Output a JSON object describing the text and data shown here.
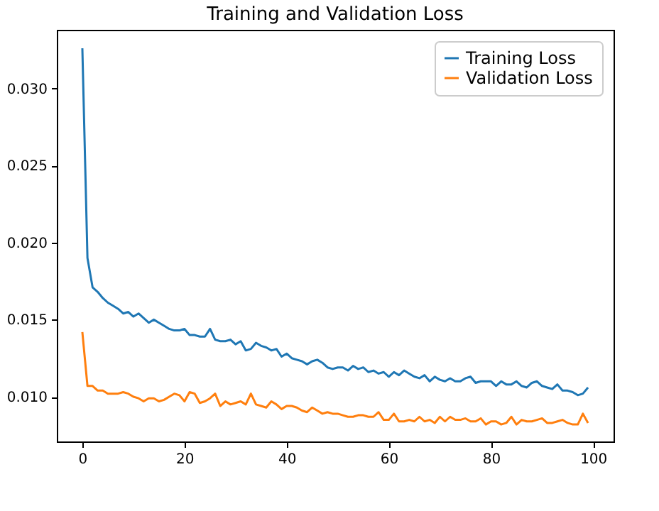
{
  "chart_data": {
    "type": "line",
    "title": "Training and Validation Loss",
    "x": [
      0,
      1,
      2,
      3,
      4,
      5,
      6,
      7,
      8,
      9,
      10,
      11,
      12,
      13,
      14,
      15,
      16,
      17,
      18,
      19,
      20,
      21,
      22,
      23,
      24,
      25,
      26,
      27,
      28,
      29,
      30,
      31,
      32,
      33,
      34,
      35,
      36,
      37,
      38,
      39,
      40,
      41,
      42,
      43,
      44,
      45,
      46,
      47,
      48,
      49,
      50,
      51,
      52,
      53,
      54,
      55,
      56,
      57,
      58,
      59,
      60,
      61,
      62,
      63,
      64,
      65,
      66,
      67,
      68,
      69,
      70,
      71,
      72,
      73,
      74,
      75,
      76,
      77,
      78,
      79,
      80,
      81,
      82,
      83,
      84,
      85,
      86,
      87,
      88,
      89,
      90,
      91,
      92,
      93,
      94,
      95,
      96,
      97,
      98,
      99
    ],
    "series": [
      {
        "name": "Training Loss",
        "color": "#1f77b4",
        "values": [
          0.0326,
          0.019,
          0.0171,
          0.0168,
          0.0164,
          0.0161,
          0.0159,
          0.0157,
          0.0154,
          0.0155,
          0.0152,
          0.0154,
          0.0151,
          0.0148,
          0.015,
          0.0148,
          0.0146,
          0.0144,
          0.0143,
          0.0143,
          0.0144,
          0.014,
          0.014,
          0.0139,
          0.0139,
          0.0144,
          0.0137,
          0.0136,
          0.0136,
          0.0137,
          0.0134,
          0.0136,
          0.013,
          0.0131,
          0.0135,
          0.0133,
          0.0132,
          0.013,
          0.0131,
          0.0126,
          0.0128,
          0.0125,
          0.0124,
          0.0123,
          0.0121,
          0.0123,
          0.0124,
          0.0122,
          0.0119,
          0.0118,
          0.0119,
          0.0119,
          0.0117,
          0.012,
          0.0118,
          0.0119,
          0.0116,
          0.0117,
          0.0115,
          0.0116,
          0.0113,
          0.0116,
          0.0114,
          0.0117,
          0.0115,
          0.0113,
          0.0112,
          0.0114,
          0.011,
          0.0113,
          0.0111,
          0.011,
          0.0112,
          0.011,
          0.011,
          0.0112,
          0.0113,
          0.0109,
          0.011,
          0.011,
          0.011,
          0.0107,
          0.011,
          0.0108,
          0.0108,
          0.011,
          0.0107,
          0.0106,
          0.0109,
          0.011,
          0.0107,
          0.0106,
          0.0105,
          0.0108,
          0.0104,
          0.0104,
          0.0103,
          0.0101,
          0.0102,
          0.0106
        ]
      },
      {
        "name": "Validation Loss",
        "color": "#ff7f0e",
        "values": [
          0.0142,
          0.0107,
          0.0107,
          0.0104,
          0.0104,
          0.0102,
          0.0102,
          0.0102,
          0.0103,
          0.0102,
          0.01,
          0.0099,
          0.0097,
          0.0099,
          0.0099,
          0.0097,
          0.0098,
          0.01,
          0.0102,
          0.0101,
          0.0097,
          0.0103,
          0.0102,
          0.0096,
          0.0097,
          0.0099,
          0.0102,
          0.0094,
          0.0097,
          0.0095,
          0.0096,
          0.0097,
          0.0095,
          0.0102,
          0.0095,
          0.0094,
          0.0093,
          0.0097,
          0.0095,
          0.0092,
          0.0094,
          0.0094,
          0.0093,
          0.0091,
          0.009,
          0.0093,
          0.0091,
          0.0089,
          0.009,
          0.0089,
          0.0089,
          0.0088,
          0.0087,
          0.0087,
          0.0088,
          0.0088,
          0.0087,
          0.0087,
          0.009,
          0.0085,
          0.0085,
          0.0089,
          0.0084,
          0.0084,
          0.0085,
          0.0084,
          0.0087,
          0.0084,
          0.0085,
          0.0083,
          0.0087,
          0.0084,
          0.0087,
          0.0085,
          0.0085,
          0.0086,
          0.0084,
          0.0084,
          0.0086,
          0.0082,
          0.0084,
          0.0084,
          0.0082,
          0.0083,
          0.0087,
          0.0082,
          0.0085,
          0.0084,
          0.0084,
          0.0085,
          0.0086,
          0.0083,
          0.0083,
          0.0084,
          0.0085,
          0.0083,
          0.0082,
          0.0082,
          0.0089,
          0.0083
        ]
      }
    ],
    "xlim": [
      -5,
      104
    ],
    "ylim": [
      0.0071,
      0.0338
    ],
    "xticks": [
      0,
      20,
      40,
      60,
      80,
      100
    ],
    "yticks": [
      {
        "value": 0.01,
        "label": "0.010"
      },
      {
        "value": 0.015,
        "label": "0.015"
      },
      {
        "value": 0.02,
        "label": "0.020"
      },
      {
        "value": 0.025,
        "label": "0.025"
      },
      {
        "value": 0.03,
        "label": "0.030"
      }
    ],
    "legend": "top right"
  }
}
